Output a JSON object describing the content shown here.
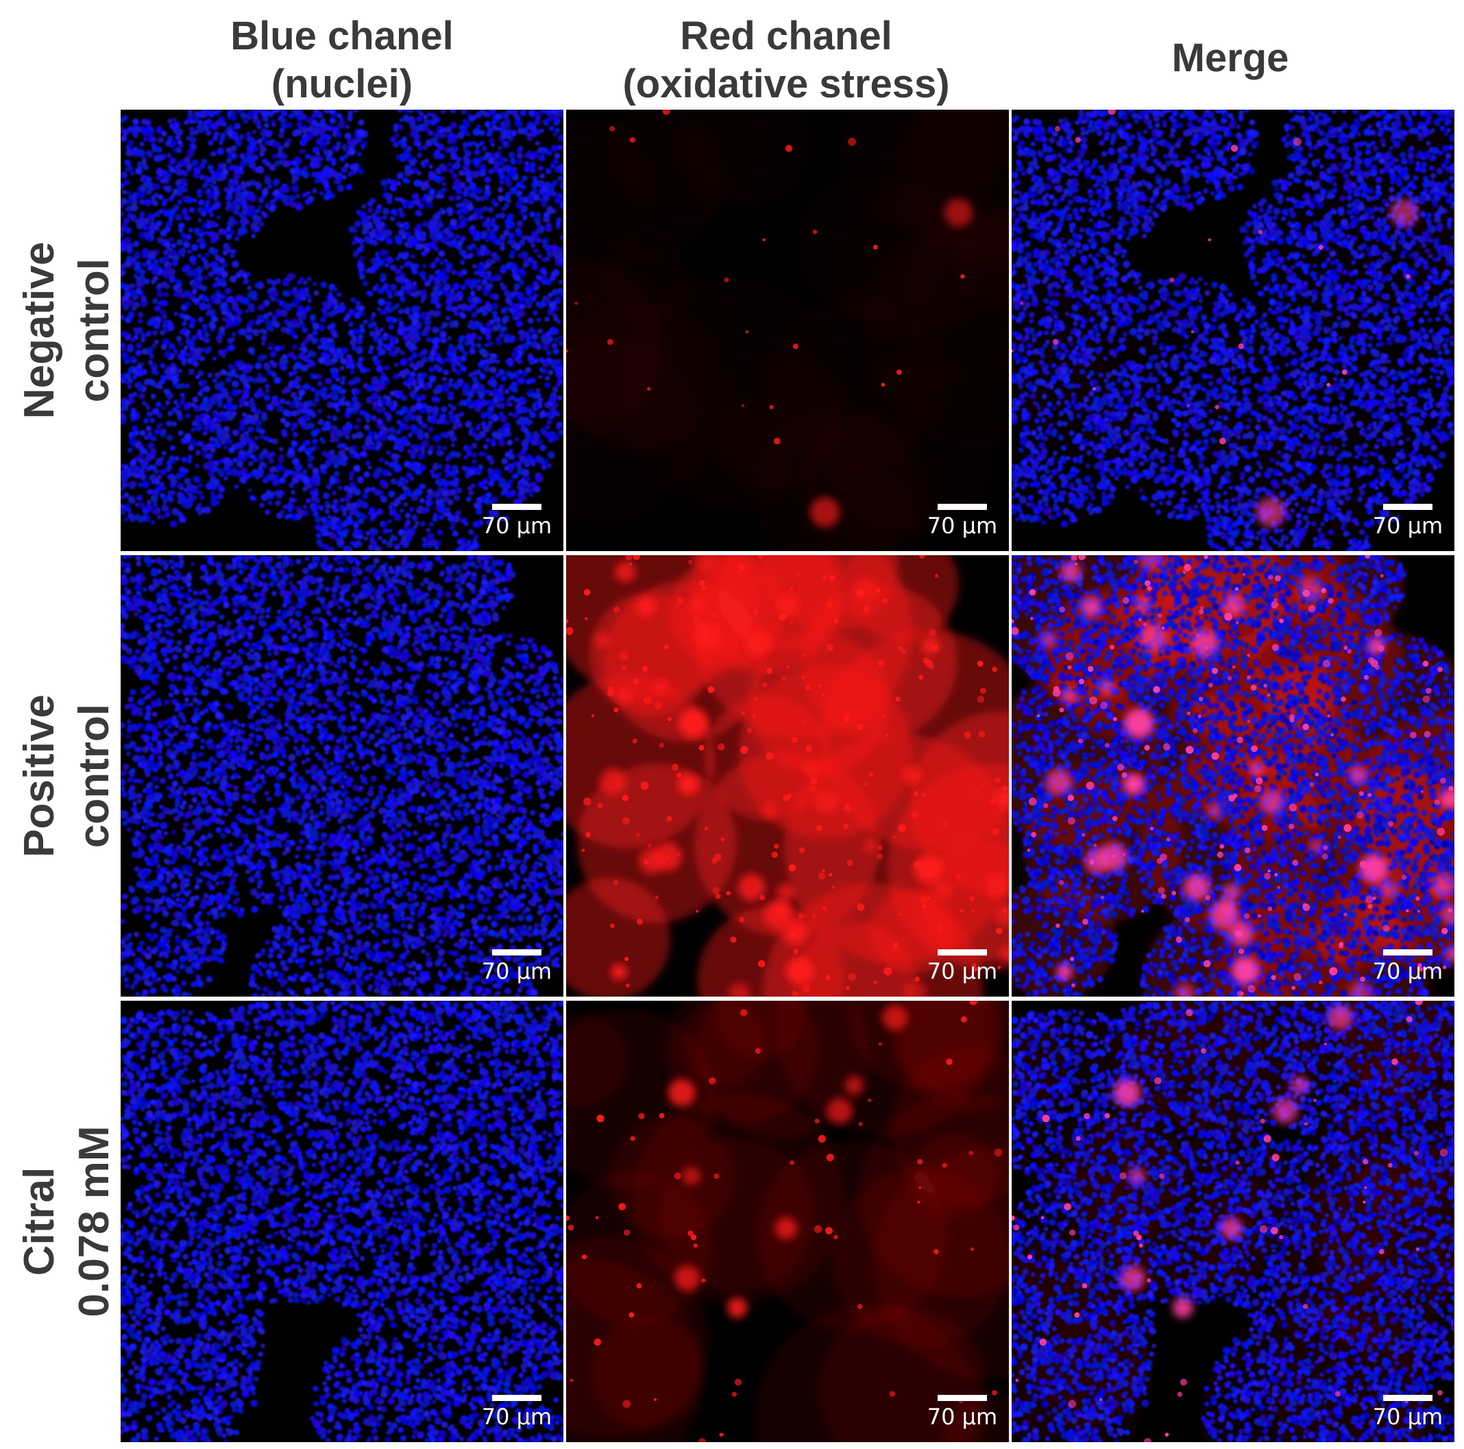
{
  "columns": [
    {
      "line1": "Blue chanel",
      "line2": "(nuclei)"
    },
    {
      "line1": "Red chanel",
      "line2": "(oxidative stress)"
    },
    {
      "line1": "Merge",
      "line2": ""
    }
  ],
  "rows": [
    {
      "line1": "Negative",
      "line2": "control"
    },
    {
      "line1": "Positive",
      "line2": "control"
    },
    {
      "line1": "Citral",
      "line2": "0.078 mM"
    }
  ],
  "scale_bar_label": "70 µm",
  "colors": {
    "nuclei": "#1a22e0",
    "stress": "#ff1a1a",
    "merge_spot": "#ff3fa0",
    "background": "#000000"
  },
  "panels": [
    {
      "row": 0,
      "col": 0,
      "channel": "blue",
      "red_level": 0.05
    },
    {
      "row": 0,
      "col": 1,
      "channel": "red",
      "red_level": 0.05
    },
    {
      "row": 0,
      "col": 2,
      "channel": "merge",
      "red_level": 0.05
    },
    {
      "row": 1,
      "col": 0,
      "channel": "blue",
      "red_level": 0.9
    },
    {
      "row": 1,
      "col": 1,
      "channel": "red",
      "red_level": 0.9
    },
    {
      "row": 1,
      "col": 2,
      "channel": "merge",
      "red_level": 0.9
    },
    {
      "row": 2,
      "col": 0,
      "channel": "blue",
      "red_level": 0.2
    },
    {
      "row": 2,
      "col": 1,
      "channel": "red",
      "red_level": 0.2
    },
    {
      "row": 2,
      "col": 2,
      "channel": "merge",
      "red_level": 0.2
    }
  ]
}
